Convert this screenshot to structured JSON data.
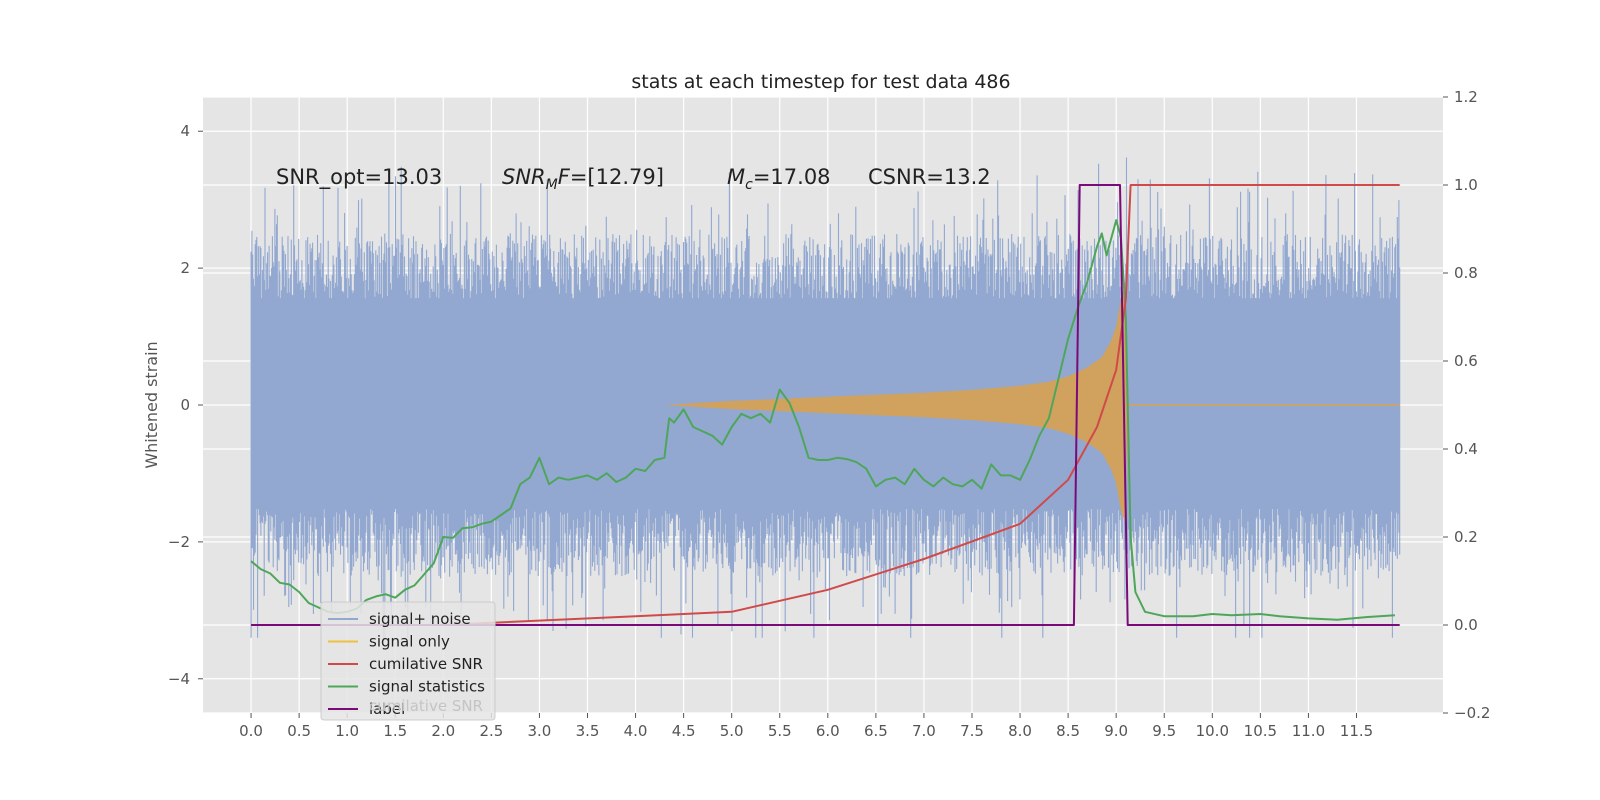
{
  "chart_data": {
    "type": "line",
    "title": "stats at each timestep for test data 486",
    "ylabel": "Whitened strain",
    "y2label": "",
    "xlim": [
      -0.5,
      12.4
    ],
    "ylim": [
      -4.5,
      4.5
    ],
    "y2lim": [
      -0.2,
      1.2
    ],
    "xticks": [
      "0.0",
      "0.5",
      "1.0",
      "1.5",
      "2.0",
      "2.5",
      "3.0",
      "3.5",
      "4.0",
      "4.5",
      "5.0",
      "5.5",
      "6.0",
      "6.5",
      "7.0",
      "7.5",
      "8.0",
      "8.5",
      "9.0",
      "9.5",
      "10.0",
      "10.5",
      "11.0",
      "11.5"
    ],
    "yticks": [
      "4",
      "2",
      "0",
      "−2",
      "−4"
    ],
    "y2ticks": [
      "1.2",
      "1.0",
      "0.8",
      "0.6",
      "0.4",
      "0.2",
      "0.0",
      "−0.2"
    ],
    "grid": true,
    "legend_placement": "lower-left",
    "annotations": {
      "snr_opt": "SNR_opt=13.03",
      "snr_mf": "=[12.79]",
      "snr_mf_symbol": "SNR",
      "snr_mf_sub": "M",
      "snr_mf_f": "F",
      "mc": "=17.08",
      "mc_symbol": "M",
      "mc_sub": "c",
      "csnr": "CSNR=13.2"
    },
    "legend": [
      {
        "label": "signal+ noise",
        "color": "#92a8d1"
      },
      {
        "label": "signal only",
        "color": "#f0c040"
      },
      {
        "label": "cumilative SNR",
        "color": "#d04a4a"
      },
      {
        "label": "signal statistics",
        "color": "#4ea65a"
      },
      {
        "label": "label",
        "color": "#7a0a7a"
      }
    ],
    "legend_hidden_text": "cumilative SNR",
    "colors": {
      "noise": "#92a8d1",
      "signal": "#dca04a",
      "csnr": "#d04a4a",
      "stats": "#4ea65a",
      "label": "#7a0a7a",
      "plot_bg": "#e5e5e5"
    },
    "series": [
      {
        "name": "cumilative SNR",
        "x": [
          0.0,
          2.0,
          4.0,
          5.0,
          6.0,
          7.0,
          7.5,
          8.0,
          8.5,
          8.8,
          9.0,
          9.1,
          9.15,
          11.95
        ],
        "y": [
          0.0,
          0.0,
          0.02,
          0.03,
          0.08,
          0.15,
          0.19,
          0.23,
          0.33,
          0.45,
          0.58,
          0.74,
          1.0,
          1.0
        ]
      },
      {
        "name": "signal statistics",
        "x": [
          0.0,
          0.1,
          0.2,
          0.3,
          0.4,
          0.5,
          0.6,
          0.7,
          0.8,
          0.9,
          1.0,
          1.1,
          1.2,
          1.3,
          1.4,
          1.5,
          1.6,
          1.7,
          1.8,
          1.9,
          2.0,
          2.1,
          2.2,
          2.3,
          2.4,
          2.5,
          2.6,
          2.7,
          2.8,
          2.9,
          3.0,
          3.1,
          3.2,
          3.3,
          3.4,
          3.5,
          3.6,
          3.7,
          3.8,
          3.9,
          4.0,
          4.1,
          4.2,
          4.3,
          4.35,
          4.4,
          4.5,
          4.6,
          4.7,
          4.8,
          4.9,
          5.0,
          5.1,
          5.2,
          5.3,
          5.4,
          5.5,
          5.6,
          5.7,
          5.8,
          5.9,
          6.0,
          6.1,
          6.2,
          6.3,
          6.4,
          6.5,
          6.6,
          6.7,
          6.8,
          6.9,
          7.0,
          7.1,
          7.2,
          7.3,
          7.4,
          7.5,
          7.6,
          7.7,
          7.8,
          7.9,
          8.0,
          8.1,
          8.2,
          8.3,
          8.4,
          8.5,
          8.6,
          8.7,
          8.8,
          8.85,
          8.9,
          9.0,
          9.05,
          9.1,
          9.15,
          9.2,
          9.3,
          9.5,
          9.8,
          10.0,
          10.2,
          10.5,
          10.7,
          11.0,
          11.3,
          11.6,
          11.9
        ],
        "y": [
          0.145,
          0.127,
          0.117,
          0.096,
          0.092,
          0.075,
          0.05,
          0.04,
          0.03,
          0.027,
          0.03,
          0.037,
          0.057,
          0.065,
          0.07,
          0.062,
          0.08,
          0.09,
          0.115,
          0.14,
          0.2,
          0.198,
          0.22,
          0.222,
          0.23,
          0.235,
          0.25,
          0.265,
          0.32,
          0.335,
          0.38,
          0.32,
          0.335,
          0.33,
          0.335,
          0.34,
          0.33,
          0.345,
          0.325,
          0.335,
          0.355,
          0.35,
          0.375,
          0.38,
          0.47,
          0.46,
          0.49,
          0.45,
          0.44,
          0.43,
          0.41,
          0.45,
          0.48,
          0.47,
          0.48,
          0.46,
          0.535,
          0.505,
          0.45,
          0.38,
          0.375,
          0.375,
          0.38,
          0.377,
          0.37,
          0.355,
          0.315,
          0.33,
          0.335,
          0.32,
          0.355,
          0.33,
          0.315,
          0.335,
          0.32,
          0.315,
          0.33,
          0.31,
          0.365,
          0.34,
          0.34,
          0.33,
          0.375,
          0.43,
          0.47,
          0.56,
          0.65,
          0.72,
          0.78,
          0.86,
          0.89,
          0.84,
          0.92,
          0.88,
          0.7,
          0.2,
          0.075,
          0.03,
          0.02,
          0.02,
          0.025,
          0.022,
          0.025,
          0.02,
          0.015,
          0.012,
          0.018,
          0.022
        ]
      },
      {
        "name": "label",
        "x": [
          0.0,
          8.56,
          8.62,
          9.04,
          9.12,
          11.95
        ],
        "y": [
          0.0,
          0.0,
          1.0,
          1.0,
          0.0,
          0.0
        ]
      },
      {
        "name": "signal only",
        "description": "chirp envelope",
        "x": [
          4.3,
          5.0,
          6.0,
          7.0,
          7.5,
          8.0,
          8.3,
          8.5,
          8.7,
          8.85,
          8.95,
          9.0,
          9.05,
          9.1,
          9.12
        ],
        "y": [
          0.0,
          0.06,
          0.12,
          0.18,
          0.22,
          0.28,
          0.34,
          0.42,
          0.55,
          0.7,
          0.95,
          1.15,
          1.55,
          1.75,
          0.0
        ]
      },
      {
        "name": "signal+ noise",
        "x_range": [
          0.0,
          11.95
        ],
        "band": [
          -1.9,
          1.95
        ],
        "spike_range": [
          -3.4,
          4.1
        ]
      }
    ]
  }
}
